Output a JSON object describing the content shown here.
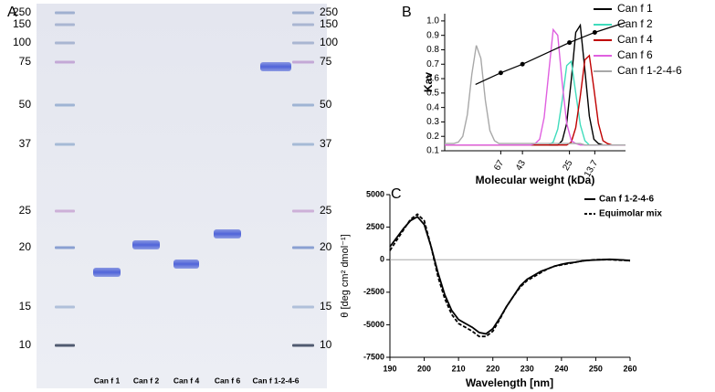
{
  "panels": [
    "A",
    "B",
    "C"
  ],
  "gel": {
    "markers": [
      "250",
      "150",
      "100",
      "75",
      "50",
      "37",
      "25",
      "20",
      "15",
      "10"
    ],
    "lanes": [
      "Can f 1",
      "Can f 2",
      "Can f 4",
      "Can f 6",
      "Can f 1-2-4-6"
    ]
  },
  "chart_data": [
    {
      "type": "line",
      "xlabel": "Molecular weight (kDa)",
      "ylabel": "Kav",
      "xlim": [
        0,
        100
      ],
      "ylim": [
        0.1,
        1.05
      ],
      "xticks": [
        {
          "value": 31,
          "label": "67"
        },
        {
          "value": 43,
          "label": "43"
        },
        {
          "value": 69,
          "label": "25"
        },
        {
          "value": 83,
          "label": "13.7"
        }
      ],
      "yticks": [
        0.1,
        0.2,
        0.3,
        0.4,
        0.5,
        0.6,
        0.7,
        0.8,
        0.9,
        {
          "value": 1.0,
          "label": "1.0"
        }
      ],
      "legend": "upper right",
      "x": [
        0,
        2.5,
        5,
        7.5,
        10,
        12.5,
        15,
        17.5,
        20,
        22.5,
        25,
        27.5,
        30,
        32.5,
        35,
        37.5,
        40,
        42.5,
        45,
        47.5,
        50,
        52.5,
        55,
        57.5,
        60,
        62.5,
        65,
        67.5,
        70,
        72.5,
        75,
        77.5,
        80,
        82.5,
        85,
        87.5,
        90,
        92.5,
        95,
        97.5,
        100
      ],
      "series": [
        {
          "name": "Can f 1",
          "color": "#000000",
          "values": [
            0.14,
            0.14,
            0.14,
            0.14,
            0.14,
            0.14,
            0.14,
            0.14,
            0.14,
            0.14,
            0.14,
            0.14,
            0.14,
            0.14,
            0.14,
            0.14,
            0.14,
            0.14,
            0.14,
            0.14,
            0.14,
            0.14,
            0.14,
            0.14,
            0.14,
            0.14,
            0.17,
            0.29,
            0.59,
            0.92,
            0.97,
            0.66,
            0.34,
            0.18,
            0.15,
            0.14,
            0.14,
            0.14,
            0.14,
            0.14,
            0.14
          ]
        },
        {
          "name": "Can f 2",
          "color": "#3fdcbc",
          "values": [
            0.14,
            0.14,
            0.14,
            0.14,
            0.14,
            0.14,
            0.14,
            0.14,
            0.14,
            0.14,
            0.14,
            0.14,
            0.14,
            0.14,
            0.14,
            0.14,
            0.14,
            0.14,
            0.14,
            0.14,
            0.14,
            0.14,
            0.14,
            0.14,
            0.16,
            0.25,
            0.45,
            0.69,
            0.72,
            0.5,
            0.28,
            0.17,
            0.14,
            0.14,
            0.14,
            0.14,
            0.14,
            0.14,
            0.14,
            0.14,
            0.14
          ]
        },
        {
          "name": "Can f 4",
          "color": "#c00000",
          "values": [
            0.14,
            0.14,
            0.14,
            0.14,
            0.14,
            0.14,
            0.14,
            0.14,
            0.14,
            0.14,
            0.14,
            0.14,
            0.14,
            0.14,
            0.14,
            0.14,
            0.14,
            0.14,
            0.14,
            0.14,
            0.14,
            0.14,
            0.14,
            0.14,
            0.14,
            0.14,
            0.14,
            0.14,
            0.16,
            0.26,
            0.48,
            0.73,
            0.76,
            0.53,
            0.29,
            0.17,
            0.15,
            0.14,
            0.14,
            0.14,
            0.14
          ]
        },
        {
          "name": "Can f 6",
          "color": "#e060e0",
          "values": [
            0.14,
            0.14,
            0.14,
            0.14,
            0.14,
            0.14,
            0.14,
            0.14,
            0.14,
            0.14,
            0.14,
            0.14,
            0.14,
            0.14,
            0.14,
            0.14,
            0.14,
            0.14,
            0.14,
            0.14,
            0.15,
            0.18,
            0.33,
            0.64,
            0.94,
            0.9,
            0.57,
            0.29,
            0.17,
            0.15,
            0.14,
            0.14,
            0.14,
            0.14,
            0.14,
            0.14,
            0.14,
            0.14,
            0.14,
            0.14,
            0.14
          ]
        },
        {
          "name": "Can f 1-2-4-6",
          "color": "#a8a8a8",
          "values": [
            0.15,
            0.15,
            0.15,
            0.16,
            0.2,
            0.35,
            0.63,
            0.83,
            0.74,
            0.45,
            0.24,
            0.17,
            0.15,
            0.15,
            0.15,
            0.15,
            0.15,
            0.15,
            0.15,
            0.15,
            0.15,
            0.15,
            0.15,
            0.15,
            0.15,
            0.15,
            0.15,
            0.15,
            0.15,
            0.15,
            0.15,
            0.14,
            0.14,
            0.14,
            0.14,
            0.14,
            0.14,
            0.14,
            0.14,
            0.14,
            0.14
          ]
        }
      ],
      "calibration": {
        "color": "#000000",
        "x": [
          17,
          31,
          43,
          69,
          83,
          100
        ],
        "values": [
          0.56,
          0.64,
          0.7,
          0.85,
          0.92,
          0.99
        ]
      }
    },
    {
      "type": "line",
      "xlabel": "Wavelength [nm]",
      "ylabel": "θ [deg cm² dmol⁻¹]",
      "xlim": [
        190,
        260
      ],
      "ylim": [
        -7500,
        5000
      ],
      "xticks": [
        190,
        200,
        210,
        220,
        230,
        240,
        250,
        260
      ],
      "yticks": [
        -7500,
        -5000,
        -2500,
        0,
        2500,
        5000
      ],
      "zero_line": true,
      "legend": "upper right",
      "x": [
        190,
        192,
        194,
        196,
        198,
        200,
        202,
        204,
        206,
        208,
        210,
        212,
        214,
        216,
        218,
        220,
        222,
        224,
        226,
        228,
        230,
        232,
        234,
        236,
        238,
        240,
        242,
        244,
        246,
        248,
        250,
        252,
        254,
        256,
        258,
        260
      ],
      "series": [
        {
          "name": "Can f 1-2-4-6",
          "color": "#000000",
          "style": "solid",
          "values": [
            1000,
            1700,
            2400,
            3000,
            3300,
            2700,
            1000,
            -1000,
            -2700,
            -3900,
            -4600,
            -4900,
            -5200,
            -5600,
            -5700,
            -5300,
            -4500,
            -3600,
            -2800,
            -2000,
            -1500,
            -1200,
            -900,
            -700,
            -500,
            -350,
            -250,
            -200,
            -100,
            -50,
            -20,
            0,
            30,
            0,
            -20,
            -80
          ]
        },
        {
          "name": "Equimolar mix",
          "color": "#000000",
          "style": "dashed",
          "values": [
            700,
            1500,
            2300,
            3100,
            3500,
            3000,
            1000,
            -1300,
            -3000,
            -4200,
            -4900,
            -5200,
            -5500,
            -5900,
            -5900,
            -5500,
            -4600,
            -3600,
            -2800,
            -2100,
            -1600,
            -1300,
            -1000,
            -700,
            -500,
            -400,
            -300,
            -200,
            -100,
            -50,
            0,
            0,
            0,
            -30,
            -50,
            -80
          ]
        }
      ]
    }
  ]
}
